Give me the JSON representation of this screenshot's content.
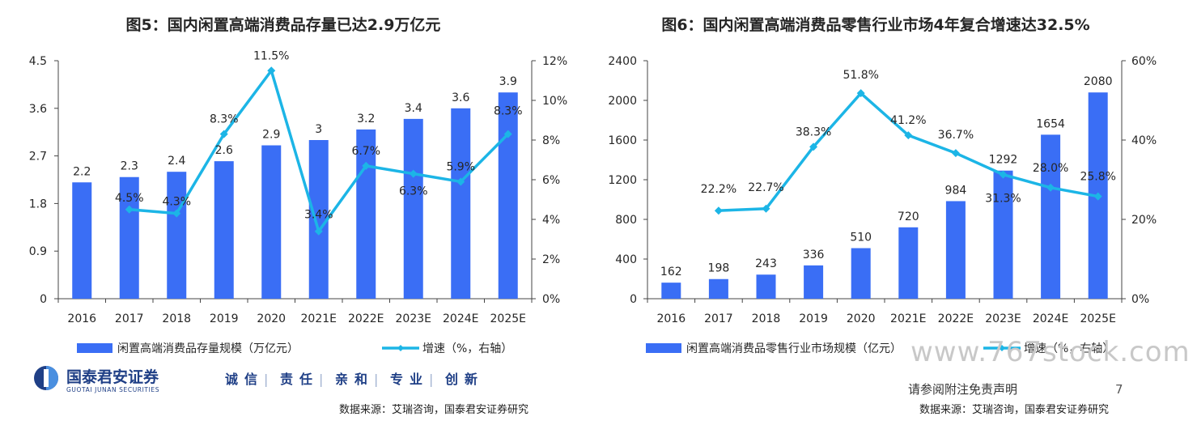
{
  "chart_data": [
    {
      "type": "bar",
      "title": "图5：国内闲置高端消费品存量已达2.9万亿元",
      "categories": [
        "2016",
        "2017",
        "2018",
        "2019",
        "2020",
        "2021E",
        "2022E",
        "2023E",
        "2024E",
        "2025E"
      ],
      "series": [
        {
          "name": "闲置高端消费品存量规模（万亿元）",
          "type": "bar",
          "axis": "left",
          "color": "#3a6ef5",
          "values": [
            2.2,
            2.3,
            2.4,
            2.6,
            2.9,
            3,
            3.2,
            3.4,
            3.6,
            3.9
          ],
          "labels": [
            "2.2",
            "2.3",
            "2.4",
            "2.6",
            "2.9",
            "3",
            "3.2",
            "3.4",
            "3.6",
            "3.9"
          ]
        },
        {
          "name": "增速（%，右轴）",
          "type": "line",
          "axis": "right",
          "color": "#1cb5e6",
          "values": [
            null,
            4.5,
            4.3,
            8.3,
            11.5,
            3.4,
            6.7,
            6.3,
            5.9,
            8.3
          ],
          "labels": [
            null,
            "4.5%",
            "4.3%",
            "8.3%",
            "11.5%",
            "3.4%",
            "6.7%",
            "6.3%",
            "5.9%",
            "8.3%"
          ]
        }
      ],
      "y_left": {
        "ticks": [
          "0",
          "0.9",
          "1.8",
          "2.7",
          "3.6",
          "4.5"
        ],
        "ylim": [
          0,
          4.5
        ]
      },
      "y_right": {
        "ticks": [
          "0%",
          "2%",
          "4%",
          "6%",
          "8%",
          "10%",
          "12%"
        ],
        "ylim": [
          0,
          12
        ]
      },
      "legend_position": "bottom"
    },
    {
      "type": "bar",
      "title": "图6：国内闲置高端消费品零售行业市场4年复合增速达32.5%",
      "categories": [
        "2016",
        "2017",
        "2018",
        "2019",
        "2020",
        "2021E",
        "2022E",
        "2023E",
        "2024E",
        "2025E"
      ],
      "series": [
        {
          "name": "闲置高端消费品零售行业市场规模（亿元）",
          "type": "bar",
          "axis": "left",
          "color": "#3a6ef5",
          "values": [
            162,
            198,
            243,
            336,
            510,
            720,
            984,
            1292,
            1654,
            2080
          ],
          "labels": [
            "162",
            "198",
            "243",
            "336",
            "510",
            "720",
            "984",
            "1292",
            "1654",
            "2080"
          ]
        },
        {
          "name": "增速（%，右轴）",
          "type": "line",
          "axis": "right",
          "color": "#1cb5e6",
          "values": [
            null,
            22.2,
            22.7,
            38.3,
            51.8,
            41.2,
            36.7,
            31.3,
            28.0,
            25.8
          ],
          "labels": [
            null,
            "22.2%",
            "22.7%",
            "38.3%",
            "51.8%",
            "41.2%",
            "36.7%",
            "31.3%",
            "28.0%",
            "25.8%"
          ]
        }
      ],
      "y_left": {
        "ticks": [
          "0",
          "400",
          "800",
          "1200",
          "1600",
          "2000",
          "2400"
        ],
        "ylim": [
          0,
          2400
        ]
      },
      "y_right": {
        "ticks": [
          "0%",
          "20%",
          "40%",
          "60%"
        ],
        "ylim": [
          0,
          60
        ]
      },
      "legend_position": "bottom"
    }
  ],
  "footer": {
    "brand_cn": "国泰君安证券",
    "brand_en": "GUOTAI JUNAN SECURITIES",
    "slogan": [
      "诚",
      "信",
      "责",
      "任",
      "亲",
      "和",
      "专",
      "业",
      "创",
      "新"
    ],
    "source_left": "数据来源：艾瑞咨询，国泰君安证券研究",
    "source_right": "数据来源：艾瑞咨询，国泰君安证券研究",
    "disclaimer": "请参阅附注免责声明",
    "page_number": "7",
    "watermark": "www.767stock.com"
  }
}
